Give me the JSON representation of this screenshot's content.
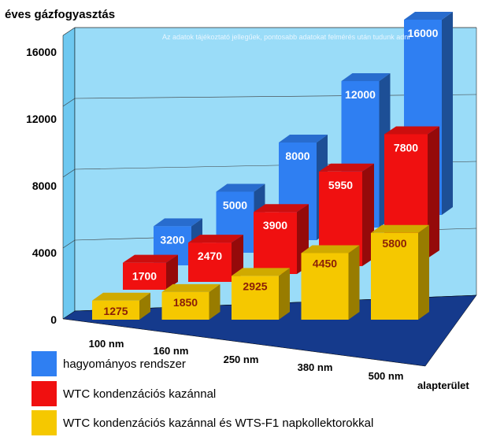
{
  "chart_data": {
    "type": "bar",
    "title": "éves gázfogyasztás",
    "xlabel": "alapterület",
    "note": "Az adatok tájékoztató jellegűek, pontosabb adatokat felmérés után tudunk adni",
    "categories": [
      "100 nm",
      "160 nm",
      "250 nm",
      "380 nm",
      "500 nm"
    ],
    "yticks": [
      "0",
      "4000",
      "8000",
      "12000",
      "16000"
    ],
    "ylim": [
      0,
      16000
    ],
    "series": [
      {
        "name": "hagyományos rendszer",
        "color": "#2f7ff2",
        "values": [
          3200,
          5000,
          8000,
          12000,
          16000
        ],
        "labels": [
          "3200",
          "5000",
          "8000",
          "12000",
          "16000"
        ]
      },
      {
        "name": "WTC kondenzációs kazánnal",
        "color": "#f01010",
        "values": [
          1700,
          2470,
          3900,
          5950,
          7800
        ],
        "labels": [
          "1700",
          "2470",
          "3900",
          "5950",
          "7800"
        ]
      },
      {
        "name": "WTC kondenzációs kazánnal és WTS-F1 napkollektorokkal",
        "color": "#f5c800",
        "values": [
          1275,
          1850,
          2925,
          4450,
          5800
        ],
        "labels": [
          "1275",
          "1850",
          "2925",
          "4450",
          "5800"
        ]
      }
    ],
    "grid": true,
    "legend": "bottom-left"
  }
}
